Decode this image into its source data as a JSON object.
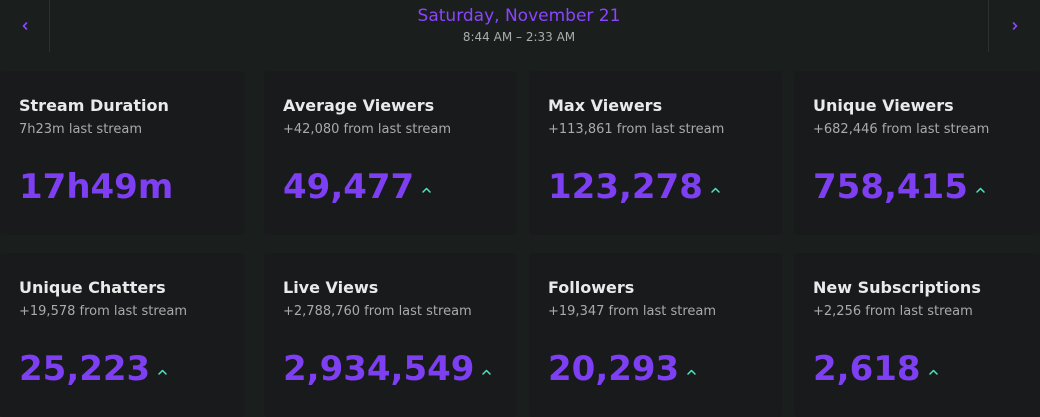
{
  "header": {
    "date": "Saturday, November 21",
    "time_range": "8:44 AM – 2:33 AM",
    "prev_icon": "chevron-left-icon",
    "next_icon": "chevron-right-icon"
  },
  "colors": {
    "accent": "#7e3ff2",
    "date_title": "#8b45ff",
    "trend_up": "#4fe3c1",
    "background": "#1a1e1d",
    "card": "#181a1c"
  },
  "stats": [
    {
      "title": "Stream Duration",
      "subtitle": "7h23m last stream",
      "value": "17h49m",
      "trend": ""
    },
    {
      "title": "Average Viewers",
      "subtitle": "+42,080 from last stream",
      "value": "49,477",
      "trend": "up"
    },
    {
      "title": "Max Viewers",
      "subtitle": "+113,861 from last stream",
      "value": "123,278",
      "trend": "up"
    },
    {
      "title": "Unique Viewers",
      "subtitle": "+682,446 from last stream",
      "value": "758,415",
      "trend": "up"
    },
    {
      "title": "Unique Chatters",
      "subtitle": "+19,578 from last stream",
      "value": "25,223",
      "trend": "up"
    },
    {
      "title": "Live Views",
      "subtitle": "+2,788,760 from last stream",
      "value": "2,934,549",
      "trend": "up"
    },
    {
      "title": "Followers",
      "subtitle": "+19,347 from last stream",
      "value": "20,293",
      "trend": "up"
    },
    {
      "title": "New Subscriptions",
      "subtitle": "+2,256 from last stream",
      "value": "2,618",
      "trend": "up"
    }
  ]
}
